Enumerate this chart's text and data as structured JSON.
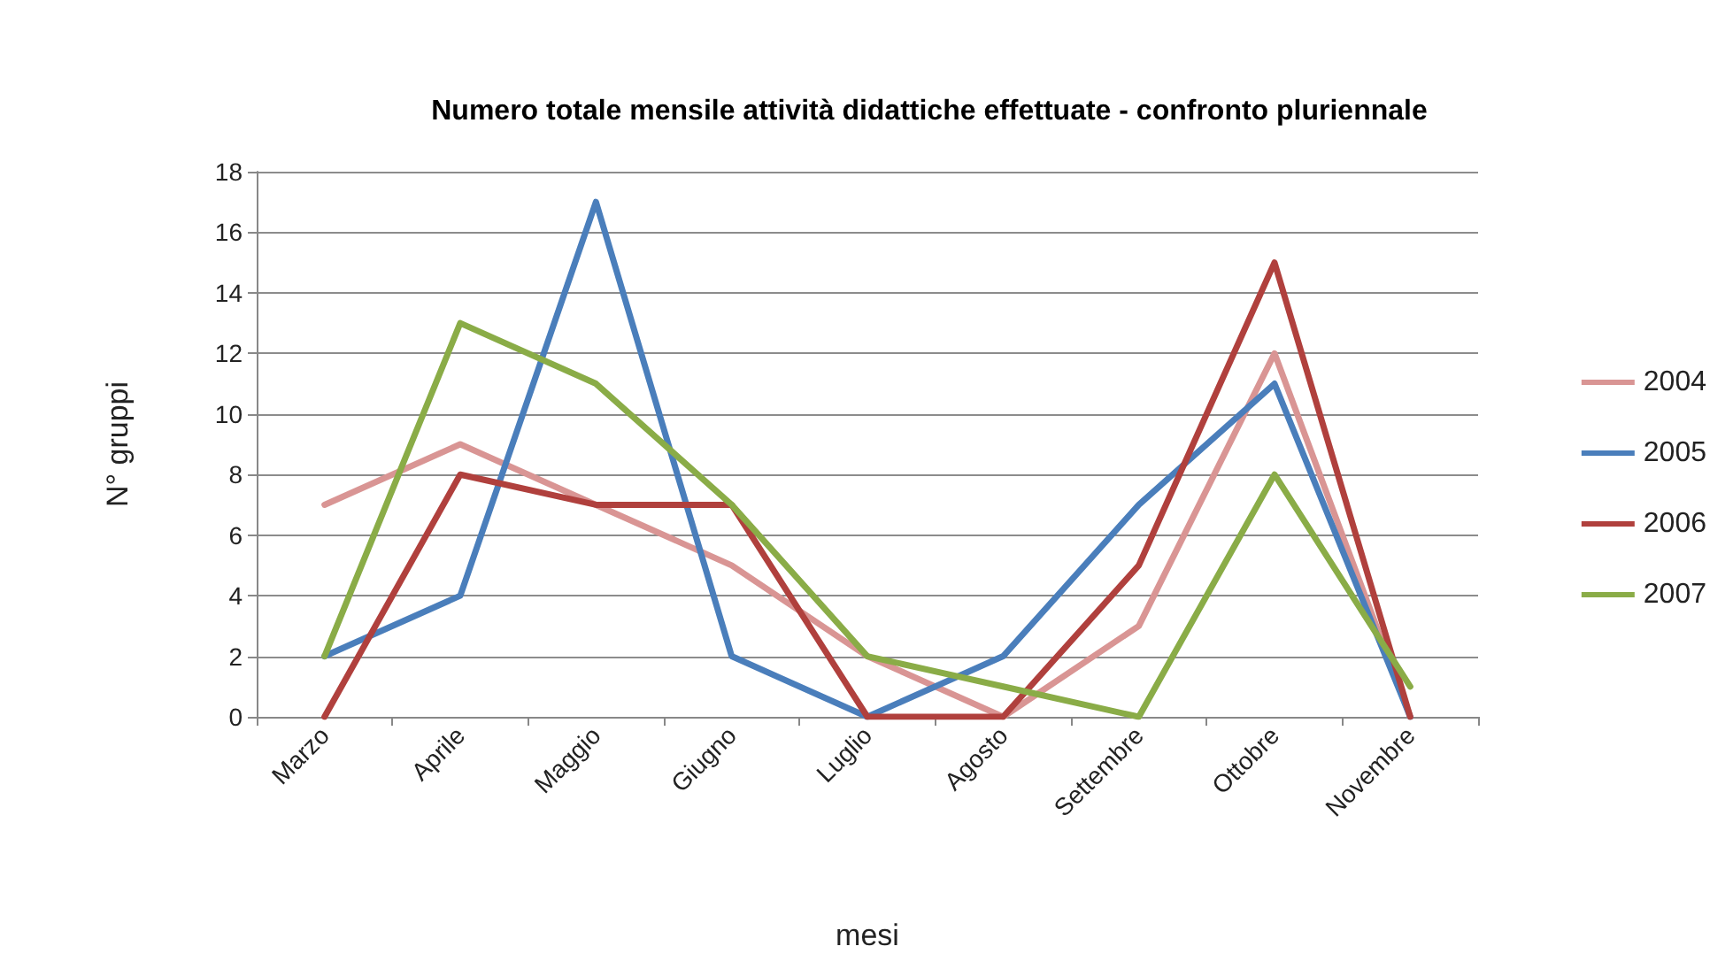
{
  "chart_data": {
    "type": "line",
    "title": "Numero totale mensile attività didattiche effettuate - confronto pluriennale",
    "xlabel": "mesi",
    "ylabel": "N° gruppi",
    "categories": [
      "Marzo",
      "Aprile",
      "Maggio",
      "Giugno",
      "Luglio",
      "Agosto",
      "Settembre",
      "Ottobre",
      "Novembre"
    ],
    "series": [
      {
        "name": "2004",
        "color": "#d99594",
        "values": [
          7,
          9,
          7,
          5,
          2,
          0,
          3,
          12,
          0
        ]
      },
      {
        "name": "2005",
        "color": "#4a7ebb",
        "values": [
          2,
          4,
          17,
          2,
          0,
          2,
          7,
          11,
          0
        ]
      },
      {
        "name": "2006",
        "color": "#b0403d",
        "values": [
          0,
          8,
          7,
          7,
          0,
          0,
          5,
          15,
          0
        ]
      },
      {
        "name": "2007",
        "color": "#8aac47",
        "values": [
          2,
          13,
          11,
          7,
          2,
          1,
          0,
          8,
          1
        ]
      }
    ],
    "ylim": [
      0,
      18
    ],
    "yticks": [
      0,
      2,
      4,
      6,
      8,
      10,
      12,
      14,
      16,
      18
    ],
    "grid": "y",
    "legend": "right",
    "marker": "none",
    "line_style": "solid"
  }
}
